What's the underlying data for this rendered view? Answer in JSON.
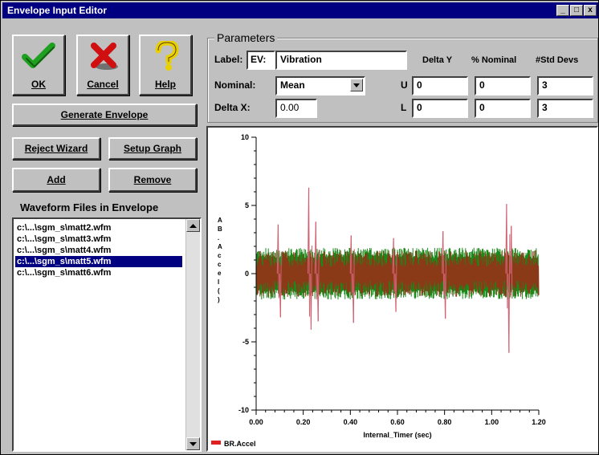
{
  "window": {
    "title": "Envelope Input Editor",
    "controls": [
      "_",
      "□",
      "x"
    ]
  },
  "toolbar": {
    "ok_label": "OK",
    "cancel_label": "Cancel",
    "help_label": "Help",
    "generate_label": "Generate Envelope",
    "reject_label": "Reject Wizard",
    "setup_label": "Setup Graph",
    "add_label": "Add",
    "remove_label": "Remove"
  },
  "icons": {
    "ok": "checkmark-icon",
    "cancel": "red-x-icon",
    "help": "question-mark-icon"
  },
  "files": {
    "header": "Waveform Files in Envelope",
    "items": [
      "c:\\...\\sgm_s\\matt2.wfm",
      "c:\\...\\sgm_s\\matt3.wfm",
      "c:\\...\\sgm_s\\matt4.wfm",
      "c:\\...\\sgm_s\\matt5.wfm",
      "c:\\...\\sgm_s\\matt6.wfm"
    ],
    "selected_index": 3
  },
  "parameters": {
    "title": "Parameters",
    "label_label": "Label:",
    "label_prefix": "EV:",
    "label_value": "Vibration",
    "nominal_label": "Nominal:",
    "nominal_value": "Mean",
    "deltax_label": "Delta X:",
    "deltax_value": "0.00",
    "col_headers": [
      "Delta Y",
      "% Nominal",
      "#Std Devs"
    ],
    "upper_label": "U",
    "lower_label": "L",
    "upper_values": [
      "0",
      "0",
      "3"
    ],
    "lower_values": [
      "0",
      "0",
      "3"
    ]
  },
  "colors": {
    "titlebar": "#000080",
    "face": "#c0c0c0",
    "series_green": "#1a8a1a",
    "series_brown": "#8a3a16",
    "series_spike": "#d06070"
  },
  "chart_data": {
    "type": "line",
    "xlabel": "Internal_Timer (sec)",
    "ylabel": "A B . A c c e l ( )",
    "xlim": [
      0,
      1.2
    ],
    "ylim": [
      -10,
      10
    ],
    "xticks": [
      "0.00",
      "0.20",
      "0.40",
      "0.60",
      "0.80",
      "1.00",
      "1.20"
    ],
    "yticks": [
      "10",
      "5",
      "0",
      "-5",
      "-10"
    ],
    "legend": "BR.Accel",
    "band_upper": 1.9,
    "band_lower": -1.9,
    "spikes": [
      {
        "x": 0.09,
        "y": 3.6
      },
      {
        "x": 0.1,
        "y": -3.2
      },
      {
        "x": 0.22,
        "y": 6.3
      },
      {
        "x": 0.23,
        "y": -4.1
      },
      {
        "x": 0.25,
        "y": 3.8
      },
      {
        "x": 0.26,
        "y": -3.5
      },
      {
        "x": 0.4,
        "y": 2.8
      },
      {
        "x": 0.41,
        "y": -3.6
      },
      {
        "x": 0.58,
        "y": 2.6
      },
      {
        "x": 0.59,
        "y": -2.8
      },
      {
        "x": 0.79,
        "y": 3.1
      },
      {
        "x": 0.8,
        "y": -3.3
      },
      {
        "x": 1.06,
        "y": 5.1
      },
      {
        "x": 1.07,
        "y": -5.8
      },
      {
        "x": 1.08,
        "y": 3.5
      }
    ]
  }
}
